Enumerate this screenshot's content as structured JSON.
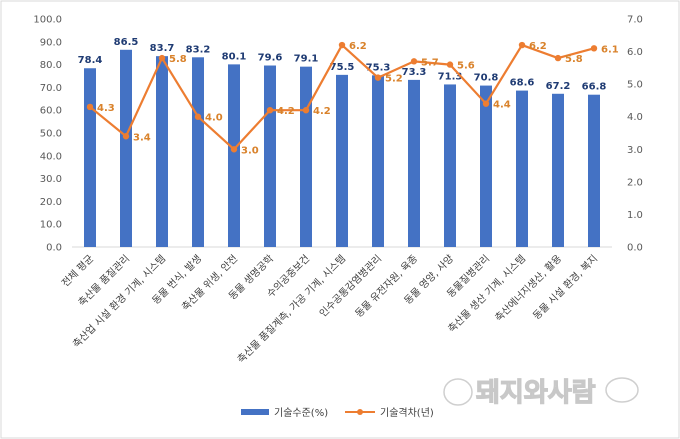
{
  "chart_data": {
    "type": "bar",
    "categories": [
      "전체 평균",
      "축산물 품질관리",
      "축산업 시설 환경 기계, 시스템",
      "동물 번식, 발생",
      "축산물 위생, 안전",
      "동물 생명공학",
      "수의공중보건",
      "축산물 품질계측, 가공 기계, 시스템",
      "인수공통감염병관리",
      "동물 유전자원, 육종",
      "동물 영양, 사양",
      "동물질병관리",
      "축산물 생산 기계, 시스템",
      "축산에너지생산, 활용",
      "동물 시설 환경, 복지"
    ],
    "series": [
      {
        "name": "기술수준(%)",
        "type": "bar",
        "axis": "left",
        "color": "#4472c4",
        "values": [
          78.4,
          86.5,
          83.7,
          83.2,
          80.1,
          79.6,
          79.1,
          75.5,
          75.3,
          73.3,
          71.3,
          70.8,
          68.6,
          67.2,
          66.8
        ]
      },
      {
        "name": "기술격차(년)",
        "type": "line",
        "axis": "right",
        "color": "#ed7d31",
        "values": [
          4.3,
          3.4,
          5.8,
          4.0,
          3.0,
          4.2,
          4.2,
          6.2,
          5.2,
          5.7,
          5.6,
          4.4,
          6.2,
          5.8,
          6.1
        ]
      }
    ],
    "y_left": {
      "min": 0,
      "max": 100,
      "step": 10,
      "decimals": 1
    },
    "y_right": {
      "min": 0,
      "max": 7,
      "step": 1,
      "decimals": 1
    },
    "grid": false,
    "legend_position": "bottom",
    "watermark": "돼지와사람"
  }
}
